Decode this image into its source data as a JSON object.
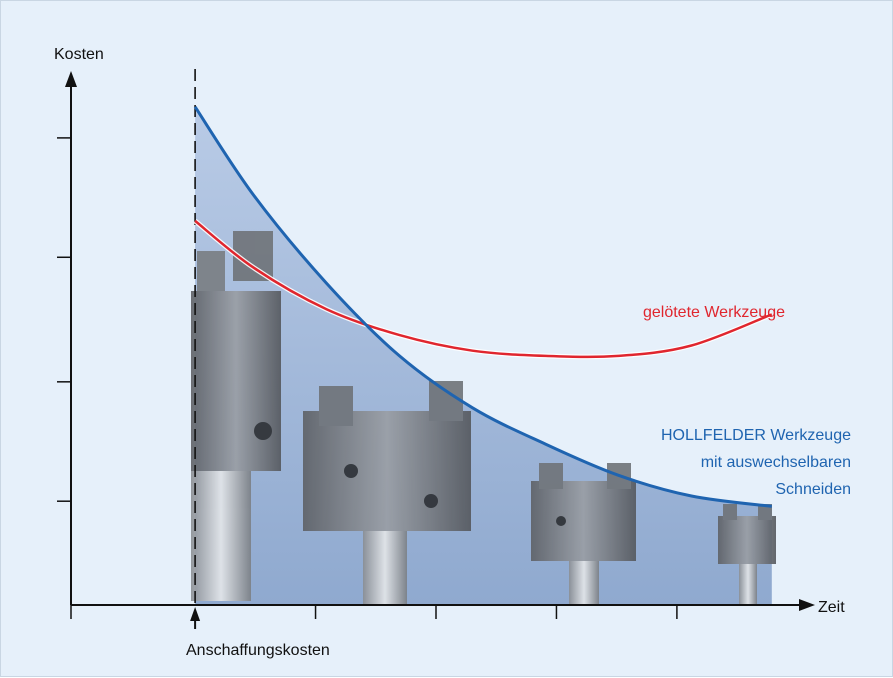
{
  "chart_data": {
    "type": "line",
    "ylabel": "Kosten",
    "xlabel": "Zeit",
    "marker_label": "Anschaffungskosten",
    "xlim": [
      0,
      100
    ],
    "ylim": [
      0,
      100
    ],
    "marker_x": 17,
    "grid": false,
    "series": [
      {
        "name": "gelötete Werkzeuge",
        "color": "#e0262e",
        "x": [
          17,
          25,
          35,
          45,
          55,
          65,
          75,
          85,
          96
        ],
        "y": [
          74,
          65,
          57,
          52,
          49,
          48,
          48,
          50,
          56
        ]
      },
      {
        "name": "HOLLFELDER Werkzeuge mit auswechselbaren Schneiden",
        "color": "#1f64b0",
        "x": [
          17,
          25,
          35,
          45,
          55,
          65,
          75,
          85,
          96
        ],
        "y": [
          96,
          79,
          62,
          48,
          38,
          31,
          25,
          21,
          19
        ]
      }
    ]
  },
  "labels": {
    "series_red": "gelötete Werkzeuge",
    "series_blue_line1": "HOLLFELDER Werkzeuge",
    "series_blue_line2": "mit auswechselbaren",
    "series_blue_line3": "Schneiden"
  },
  "colors": {
    "axis": "#111111",
    "fill": "#9db4d6",
    "background": "#e6f0fa"
  }
}
